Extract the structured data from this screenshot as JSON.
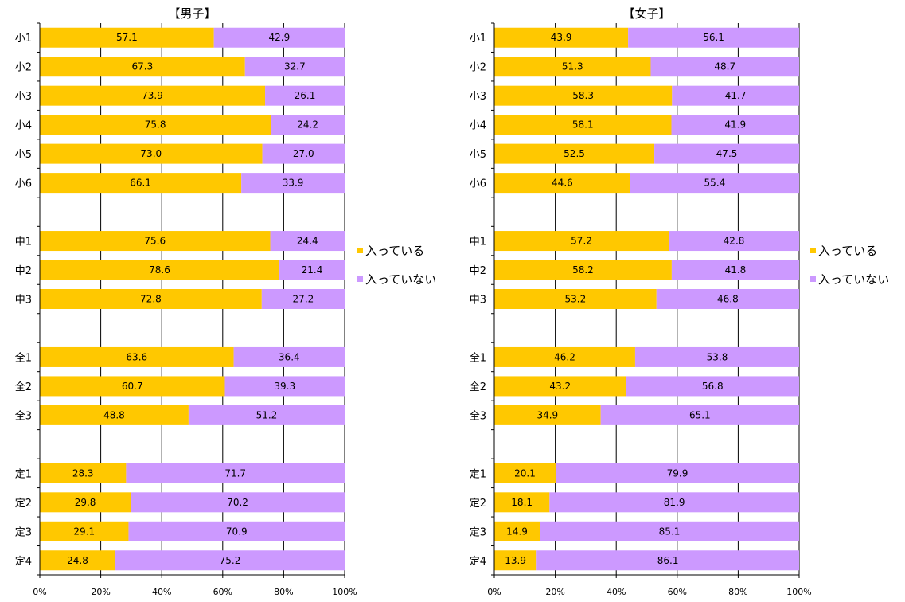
{
  "colors": {
    "in": "#FFC800",
    "out": "#CC99FF",
    "axis": "#000000",
    "grid": "#000000"
  },
  "chart_data": [
    {
      "type": "bar",
      "orientation": "horizontal",
      "stacked": true,
      "title": "【男子】",
      "xlim": [
        0,
        100
      ],
      "x_tick_labels": [
        "0%",
        "20%",
        "40%",
        "60%",
        "80%",
        "100%"
      ],
      "grid": true,
      "legend_position": "right",
      "categories": [
        "小1",
        "小2",
        "小3",
        "小4",
        "小5",
        "小6",
        "",
        "中1",
        "中2",
        "中3",
        "",
        "全1",
        "全2",
        "全3",
        "",
        "定1",
        "定2",
        "定3",
        "定4"
      ],
      "series": [
        {
          "name": "入っている",
          "color": "#FFC800",
          "values": [
            57.1,
            67.3,
            73.9,
            75.8,
            73.0,
            66.1,
            null,
            75.6,
            78.6,
            72.8,
            null,
            63.6,
            60.7,
            48.8,
            null,
            28.3,
            29.8,
            29.1,
            24.8
          ],
          "labels": [
            "57.1",
            "67.3",
            "73.9",
            "75.8",
            "73.0",
            "66.1",
            null,
            "75.6",
            "78.6",
            "72.8",
            null,
            "63.6",
            "60.7",
            "48.8",
            null,
            "28.3",
            "29.8",
            "29.1",
            "24.8"
          ]
        },
        {
          "name": "入っていない",
          "color": "#CC99FF",
          "values": [
            42.9,
            32.7,
            26.1,
            24.2,
            27.0,
            33.9,
            null,
            24.4,
            21.4,
            27.2,
            null,
            36.4,
            39.3,
            51.2,
            null,
            71.7,
            70.2,
            70.9,
            75.2
          ],
          "labels": [
            "42.9",
            "32.7",
            "26.1",
            "24.2",
            "27.0",
            "33.9",
            null,
            "24.4",
            "21.4",
            "27.2",
            null,
            "36.4",
            "39.3",
            "51.2",
            null,
            "71.7",
            "70.2",
            "70.9",
            "75.2"
          ]
        }
      ]
    },
    {
      "type": "bar",
      "orientation": "horizontal",
      "stacked": true,
      "title": "【女子】",
      "xlim": [
        0,
        100
      ],
      "x_tick_labels": [
        "0%",
        "20%",
        "40%",
        "60%",
        "80%",
        "100%"
      ],
      "grid": true,
      "legend_position": "right",
      "categories": [
        "小1",
        "小2",
        "小3",
        "小4",
        "小5",
        "小6",
        "",
        "中1",
        "中2",
        "中3",
        "",
        "全1",
        "全2",
        "全3",
        "",
        "定1",
        "定2",
        "定3",
        "定4"
      ],
      "series": [
        {
          "name": "入っている",
          "color": "#FFC800",
          "values": [
            43.9,
            51.3,
            58.3,
            58.1,
            52.5,
            44.6,
            null,
            57.2,
            58.2,
            53.2,
            null,
            46.2,
            43.2,
            34.9,
            null,
            20.1,
            18.1,
            14.9,
            13.9
          ],
          "labels": [
            "43.9",
            "51.3",
            "58.3",
            "58.1",
            "52.5",
            "44.6",
            null,
            "57.2",
            "58.2",
            "53.2",
            null,
            "46.2",
            "43.2",
            "34.9",
            null,
            "20.1",
            "18.1",
            "14.9",
            "13.9"
          ]
        },
        {
          "name": "入っていない",
          "color": "#CC99FF",
          "values": [
            56.1,
            48.7,
            41.7,
            41.9,
            47.5,
            55.4,
            null,
            42.8,
            41.8,
            46.8,
            null,
            53.8,
            56.8,
            65.1,
            null,
            79.9,
            81.9,
            85.1,
            86.1
          ],
          "labels": [
            "56.1",
            "48.7",
            "41.7",
            "41.9",
            "47.5",
            "55.4",
            null,
            "42.8",
            "41.8",
            "46.8",
            null,
            "53.8",
            "56.8",
            "65.1",
            null,
            "79.9",
            "81.9",
            "85.1",
            "86.1"
          ]
        }
      ]
    }
  ]
}
